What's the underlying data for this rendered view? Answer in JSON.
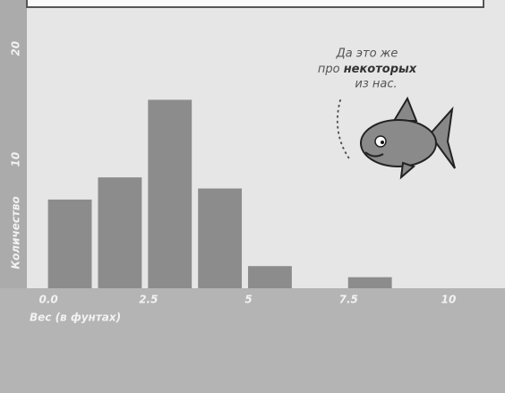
{
  "chart_data": {
    "type": "histogram",
    "x_label": "Вес (в фунтах)",
    "y_label": "Количество",
    "bins": [
      0,
      1.25,
      2.5,
      3.75,
      5,
      6.25,
      7.5,
      8.75
    ],
    "values": [
      8,
      10,
      17,
      9,
      2,
      0,
      1
    ],
    "color": "#8c8c8c",
    "xlim": [
      -0.45,
      11.5
    ],
    "xticks": [
      {
        "value": 0,
        "label": "0.0"
      },
      2.5,
      5,
      7.5,
      10
    ],
    "ylim": [
      0,
      26
    ],
    "yticks": [
      10,
      20
    ],
    "annotation": [
      "Да это же",
      "про",
      "некоторых",
      "из нас."
    ]
  }
}
